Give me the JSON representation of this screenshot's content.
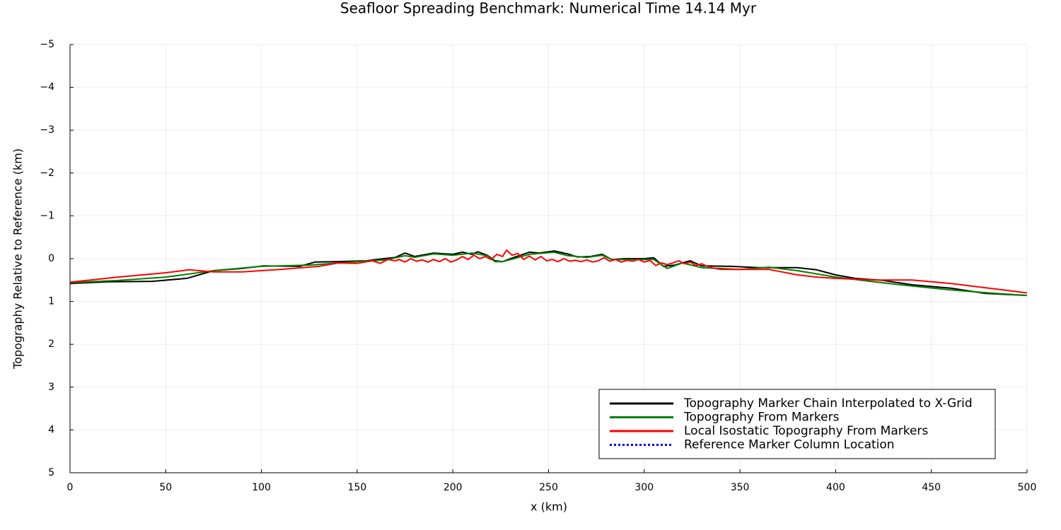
{
  "chart_data": {
    "type": "line",
    "title": "Seafloor Spreading Benchmark: Numerical Time 14.14 Myr",
    "x_label": "x (km)",
    "y_label": "Topography Relative to Reference (km)",
    "xlim": [
      0,
      500
    ],
    "ylim": [
      5,
      -5
    ],
    "xticks": [
      0,
      50,
      100,
      150,
      200,
      250,
      300,
      350,
      400,
      450,
      500
    ],
    "yticks": [
      {
        "value": -5,
        "label": "−5"
      },
      {
        "value": -4,
        "label": "−4"
      },
      {
        "value": -3,
        "label": "−3"
      },
      {
        "value": -2,
        "label": "−2"
      },
      {
        "value": -1,
        "label": "−1"
      },
      0,
      1,
      2,
      3,
      4,
      5
    ],
    "grid": true,
    "legend": "bottom-right",
    "series": [
      {
        "name": "Topography Marker Chain Interpolated to X-Grid",
        "color": "#000000",
        "linestyle": "solid",
        "x": [
          0,
          20,
          43,
          61,
          75,
          90,
          101,
          120,
          128,
          140,
          155,
          160,
          170,
          175,
          180,
          190,
          200,
          205,
          210,
          213,
          218,
          222,
          226,
          232,
          240,
          245,
          253,
          260,
          265,
          272,
          278,
          283,
          290,
          300,
          305,
          310,
          316,
          324,
          330,
          345,
          360,
          380,
          390,
          400,
          410,
          425,
          440,
          460,
          478,
          500
        ],
        "values": [
          0.58,
          0.54,
          0.53,
          0.46,
          0.28,
          0.23,
          0.17,
          0.18,
          0.08,
          0.07,
          0.05,
          0.02,
          -0.03,
          -0.13,
          -0.05,
          -0.13,
          -0.1,
          -0.15,
          -0.1,
          -0.16,
          -0.08,
          0.05,
          0.07,
          -0.03,
          -0.15,
          -0.13,
          -0.18,
          -0.11,
          -0.04,
          -0.05,
          -0.1,
          0.02,
          0,
          0,
          -0.02,
          0.18,
          0.15,
          0.05,
          0.17,
          0.18,
          0.21,
          0.21,
          0.26,
          0.38,
          0.46,
          0.51,
          0.61,
          0.69,
          0.81,
          0.86
        ]
      },
      {
        "name": "Topography From Markers",
        "color": "#008000",
        "linestyle": "solid",
        "x": [
          0,
          25,
          50,
          75,
          100,
          125,
          150,
          165,
          175,
          180,
          190,
          200,
          210,
          218,
          222,
          226,
          232,
          240,
          253,
          260,
          270,
          278,
          283,
          300,
          305,
          312,
          320,
          330,
          350,
          365,
          380,
          400,
          420,
          440,
          460,
          480,
          500
        ],
        "values": [
          0.56,
          0.51,
          0.43,
          0.28,
          0.18,
          0.15,
          0.07,
          0.03,
          -0.07,
          -0.03,
          -0.11,
          -0.08,
          -0.13,
          -0.07,
          0.07,
          0.07,
          0,
          -0.1,
          -0.15,
          -0.07,
          -0.03,
          -0.08,
          0.02,
          0.02,
          0.02,
          0.23,
          0.1,
          0.21,
          0.25,
          0.2,
          0.28,
          0.43,
          0.54,
          0.64,
          0.73,
          0.8,
          0.86
        ]
      },
      {
        "name": "Local Isostatic Topography From Markers",
        "color": "#ff0000",
        "linestyle": "solid",
        "x": [
          0,
          25,
          50,
          62,
          75,
          90,
          110,
          130,
          140,
          150,
          158,
          162,
          166,
          170,
          172,
          175,
          178,
          181,
          184,
          187,
          190,
          193,
          196,
          199,
          202,
          205,
          208,
          211,
          214,
          217,
          220,
          223,
          226,
          228,
          231,
          234,
          237,
          240,
          243,
          246,
          249,
          252,
          255,
          258,
          261,
          264,
          267,
          270,
          273,
          276,
          279,
          282,
          285,
          288,
          291,
          294,
          297,
          300,
          303,
          306,
          309,
          312,
          315,
          318,
          321,
          324,
          327,
          330,
          333,
          336,
          340,
          365,
          380,
          390,
          400,
          420,
          440,
          460,
          480,
          500
        ],
        "values": [
          0.55,
          0.43,
          0.33,
          0.26,
          0.31,
          0.31,
          0.25,
          0.18,
          0.1,
          0.11,
          0.05,
          0.11,
          0.02,
          0.05,
          0.02,
          0.08,
          0,
          0.06,
          0.03,
          0.08,
          0.02,
          0.07,
          0,
          0.08,
          0.03,
          -0.05,
          0.02,
          -0.08,
          0,
          -0.05,
          0.02,
          -0.1,
          -0.05,
          -0.2,
          -0.08,
          -0.12,
          0.02,
          -0.06,
          0.03,
          -0.05,
          0.05,
          0.02,
          0.07,
          0,
          0.06,
          0.04,
          0.07,
          0.03,
          0.08,
          0.05,
          -0.02,
          0.06,
          0.02,
          0.08,
          0.04,
          0.06,
          0.02,
          0.08,
          0.04,
          0.16,
          0.1,
          0.14,
          0.1,
          0.05,
          0.12,
          0.08,
          0.16,
          0.12,
          0.18,
          0.22,
          0.25,
          0.25,
          0.38,
          0.43,
          0.46,
          0.5,
          0.5,
          0.58,
          0.69,
          0.8
        ]
      },
      {
        "name": "Reference Marker Column Location",
        "color": "#0000ff",
        "linestyle": "dot",
        "x": [],
        "values": []
      }
    ]
  }
}
